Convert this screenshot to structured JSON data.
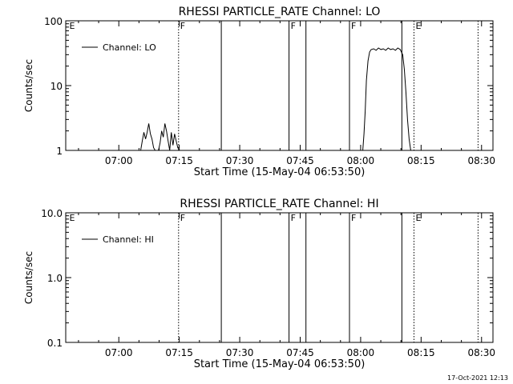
{
  "footer_stamp": "17-Oct-2021 12:13",
  "chart_data": [
    {
      "type": "line",
      "title": "RHESSI PARTICLE_RATE Channel: LO",
      "xlabel": "Start Time (15-May-04 06:53:50)",
      "ylabel": "Counts/sec",
      "y_scale": "log",
      "ylim": [
        1,
        100
      ],
      "y_ticks": [
        {
          "value": 1,
          "label": "1"
        },
        {
          "value": 10,
          "label": "10"
        },
        {
          "value": 100,
          "label": "100"
        }
      ],
      "xlim_minutes_from_start": [
        -7.0,
        99.0
      ],
      "x_ticks": [
        {
          "label": "07:00",
          "minutes": 6.17
        },
        {
          "label": "07:15",
          "minutes": 21.17
        },
        {
          "label": "07:30",
          "minutes": 36.17
        },
        {
          "label": "07:45",
          "minutes": 51.17
        },
        {
          "label": "08:00",
          "minutes": 66.17
        },
        {
          "label": "08:15",
          "minutes": 81.17
        },
        {
          "label": "08:30",
          "minutes": 96.17
        }
      ],
      "grid": false,
      "legend_position": "upper-left",
      "series": [
        {
          "name": "Channel: LO",
          "x_minutes": [
            11.6,
            12.0,
            12.4,
            12.8,
            13.2,
            13.6,
            14.0,
            14.4,
            14.8,
            15.2,
            15.6,
            16.0,
            16.4,
            16.8,
            17.2,
            17.6,
            18.0,
            18.4,
            18.8,
            19.2,
            19.6,
            20.0,
            20.4,
            20.8,
            21.2
          ],
          "y": [
            1,
            1.4,
            1.9,
            1.5,
            1.9,
            2.6,
            1.8,
            1.5,
            1.1,
            1,
            1,
            1,
            1.3,
            2.0,
            1.6,
            2.6,
            2.0,
            1.4,
            1.0,
            1.9,
            1.2,
            1.8,
            1.4,
            1.1,
            1
          ]
        },
        {
          "name": "Channel: LO",
          "x_minutes": [
            66.7,
            67.0,
            67.3,
            67.6,
            68.0,
            68.4,
            68.8,
            69.4,
            70.0,
            70.6,
            71.2,
            71.8,
            72.4,
            73.0,
            73.6,
            74.2,
            74.8,
            75.4,
            76.0,
            76.6,
            77.0,
            77.4,
            77.8,
            78.2,
            78.6
          ],
          "y": [
            1,
            1.8,
            4,
            12,
            24,
            33,
            36,
            37,
            35,
            38,
            36,
            37,
            35,
            38,
            36,
            37,
            35,
            38,
            36,
            30,
            18,
            8,
            3,
            1.5,
            1
          ]
        }
      ],
      "markers": [
        {
          "label": "E",
          "minutes": -6.5,
          "style": "label-only"
        },
        {
          "label": "F",
          "minutes": 21.0,
          "style": "dotted"
        },
        {
          "label": "",
          "minutes": 31.6,
          "style": "solid"
        },
        {
          "label": "F",
          "minutes": 48.4,
          "style": "solid"
        },
        {
          "label": "",
          "minutes": 52.6,
          "style": "solid"
        },
        {
          "label": "F",
          "minutes": 63.4,
          "style": "solid"
        },
        {
          "label": "",
          "minutes": 76.4,
          "style": "solid"
        },
        {
          "label": "E",
          "minutes": 79.4,
          "style": "dotted"
        },
        {
          "label": "",
          "minutes": 95.3,
          "style": "dotted"
        }
      ]
    },
    {
      "type": "line",
      "title": "RHESSI PARTICLE_RATE Channel: HI",
      "xlabel": "Start Time (15-May-04 06:53:50)",
      "ylabel": "Counts/sec",
      "y_scale": "log",
      "ylim": [
        0.1,
        10
      ],
      "y_ticks": [
        {
          "value": 0.1,
          "label": "0.1"
        },
        {
          "value": 1,
          "label": "1.0"
        },
        {
          "value": 10,
          "label": "10.0"
        }
      ],
      "xlim_minutes_from_start": [
        -7.0,
        99.0
      ],
      "x_ticks": [
        {
          "label": "07:00",
          "minutes": 6.17
        },
        {
          "label": "07:15",
          "minutes": 21.17
        },
        {
          "label": "07:30",
          "minutes": 36.17
        },
        {
          "label": "07:45",
          "minutes": 51.17
        },
        {
          "label": "08:00",
          "minutes": 66.17
        },
        {
          "label": "08:15",
          "minutes": 81.17
        },
        {
          "label": "08:30",
          "minutes": 96.17
        }
      ],
      "grid": false,
      "legend_position": "upper-left",
      "series": [
        {
          "name": "Channel: HI",
          "x_minutes": [],
          "y": []
        }
      ],
      "markers": [
        {
          "label": "E",
          "minutes": -6.5,
          "style": "label-only"
        },
        {
          "label": "F",
          "minutes": 21.0,
          "style": "dotted"
        },
        {
          "label": "",
          "minutes": 31.6,
          "style": "solid"
        },
        {
          "label": "F",
          "minutes": 48.4,
          "style": "solid"
        },
        {
          "label": "",
          "minutes": 52.6,
          "style": "solid"
        },
        {
          "label": "F",
          "minutes": 63.4,
          "style": "solid"
        },
        {
          "label": "",
          "minutes": 76.4,
          "style": "solid"
        },
        {
          "label": "E",
          "minutes": 79.4,
          "style": "dotted"
        },
        {
          "label": "",
          "minutes": 95.3,
          "style": "dotted"
        }
      ]
    }
  ]
}
